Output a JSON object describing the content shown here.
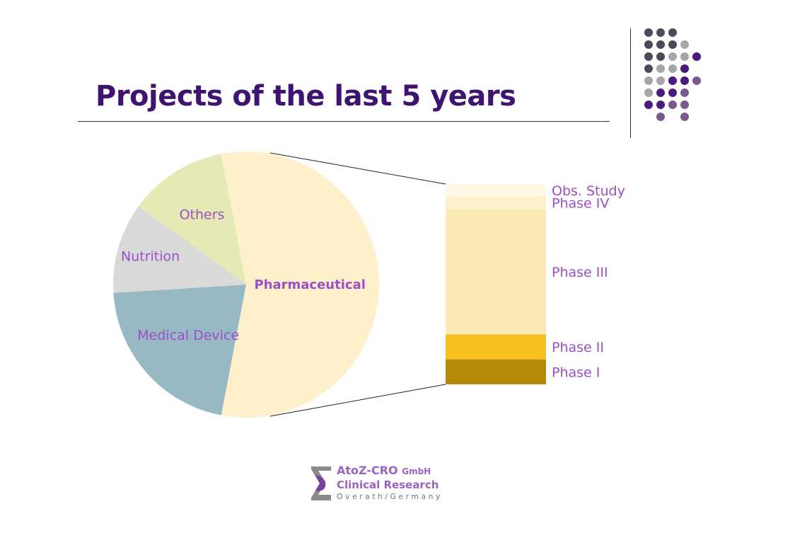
{
  "slide": {
    "title": "Projects of the last 5 years"
  },
  "logo": {
    "line1_main": "AtoZ-CRO ",
    "line1_suffix": "GmbH",
    "line2": "Clinical Research",
    "line3": "Overath/Germany"
  },
  "colors": {
    "title": "#3f1470",
    "label": "#9b4fc8",
    "dot_dark": "#4a4a5a",
    "dot_grey": "#a6a6a6",
    "dot_purple": "#4b1a7e",
    "dot_violet": "#7a5a8e"
  },
  "chart_data": [
    {
      "type": "pie",
      "categories": [
        "Pharmaceutical",
        "Medical Device",
        "Nutrition",
        "Others"
      ],
      "values": [
        56,
        21,
        11,
        12
      ],
      "unit": "%",
      "colors": [
        "#fdf0cb",
        "#97b9c3",
        "#d9d9d9",
        "#e5e9b4"
      ],
      "title": "",
      "legend": "none"
    },
    {
      "type": "bar",
      "stacked": true,
      "categories": [
        "Phase I",
        "Phase II",
        "Phase III",
        "Phase IV",
        "Obs. Study"
      ],
      "values": [
        10,
        10,
        50,
        5,
        5
      ],
      "unit": "% of Pharmaceutical",
      "colors": [
        "#b38a07",
        "#f5c020",
        "#fbe9b5",
        "#fdf0cb",
        "#fff8e6"
      ],
      "title": "",
      "legend": "none"
    }
  ]
}
